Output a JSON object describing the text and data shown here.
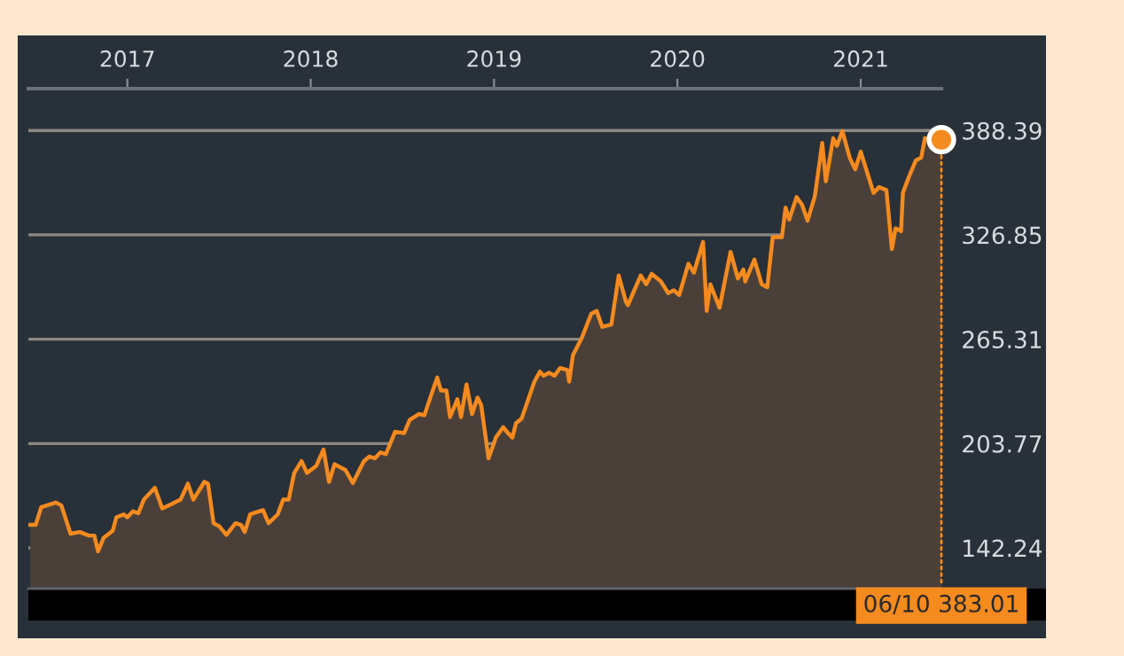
{
  "chart_data": {
    "type": "area",
    "xlim": [
      2016.46,
      2021.44
    ],
    "ylim": [
      118.2,
      413.1
    ],
    "xticks": [
      2017,
      2018,
      2019,
      2020,
      2021
    ],
    "yticks": [
      {
        "value": 142.24,
        "label": "142.24"
      },
      {
        "value": 203.77,
        "label": "203.77"
      },
      {
        "value": 265.31,
        "label": "265.31"
      },
      {
        "value": 326.85,
        "label": "326.85"
      },
      {
        "value": 388.39,
        "label": "388.39"
      }
    ],
    "grid": "y",
    "legend": false,
    "annotations": [
      {
        "text": "06/10 383.01",
        "x": 2021.44,
        "y": 383.01
      }
    ],
    "series": [
      {
        "color": "#f58a1f",
        "x": [
          2016.47,
          2016.5,
          2016.53,
          2016.61,
          2016.64,
          2016.69,
          2016.74,
          2016.79,
          2016.82,
          2016.84,
          2016.87,
          2016.92,
          2016.94,
          2016.98,
          2017.0,
          2017.03,
          2017.06,
          2017.09,
          2017.15,
          2017.19,
          2017.24,
          2017.29,
          2017.33,
          2017.36,
          2017.42,
          2017.44,
          2017.47,
          2017.5,
          2017.54,
          2017.59,
          2017.62,
          2017.64,
          2017.67,
          2017.74,
          2017.77,
          2017.82,
          2017.85,
          2017.88,
          2017.91,
          2017.95,
          2017.98,
          2018.03,
          2018.07,
          2018.1,
          2018.13,
          2018.19,
          2018.23,
          2018.29,
          2018.32,
          2018.35,
          2018.38,
          2018.41,
          2018.46,
          2018.51,
          2018.54,
          2018.59,
          2018.62,
          2018.66,
          2018.69,
          2018.71,
          2018.74,
          2018.76,
          2018.8,
          2018.82,
          2018.85,
          2018.88,
          2018.91,
          2018.93,
          2018.97,
          2019.01,
          2019.05,
          2019.07,
          2019.1,
          2019.12,
          2019.15,
          2019.19,
          2019.22,
          2019.25,
          2019.27,
          2019.3,
          2019.33,
          2019.36,
          2019.4,
          2019.41,
          2019.43,
          2019.48,
          2019.53,
          2019.56,
          2019.59,
          2019.64,
          2019.68,
          2019.72,
          2019.73,
          2019.8,
          2019.83,
          2019.86,
          2019.91,
          2019.95,
          2019.98,
          2020.01,
          2020.06,
          2020.09,
          2020.14,
          2020.16,
          2020.18,
          2020.23,
          2020.29,
          2020.33,
          2020.36,
          2020.37,
          2020.42,
          2020.46,
          2020.49,
          2020.52,
          2020.57,
          2020.59,
          2020.61,
          2020.65,
          2020.68,
          2020.71,
          2020.75,
          2020.79,
          2020.81,
          2020.85,
          2020.87,
          2020.9,
          2020.94,
          2020.97,
          2021.0,
          2021.04,
          2021.07,
          2021.1,
          2021.14,
          2021.17,
          2021.19,
          2021.22,
          2021.23,
          2021.26,
          2021.3,
          2021.33,
          2021.35,
          2021.39,
          2021.44
        ],
        "values": [
          155.8,
          155.8,
          166.2,
          169.0,
          167.3,
          150.6,
          151.6,
          149.5,
          149.5,
          140.2,
          148.1,
          152.3,
          160.3,
          162.0,
          160.3,
          163.8,
          162.7,
          170.7,
          177.7,
          165.5,
          168.0,
          170.7,
          180.1,
          170.7,
          181.2,
          180.1,
          156.8,
          155.1,
          149.9,
          156.8,
          155.8,
          151.6,
          162.0,
          164.5,
          156.8,
          162.0,
          170.7,
          170.7,
          186.4,
          193.4,
          186.4,
          190.6,
          200.3,
          181.2,
          191.6,
          188.1,
          180.5,
          193.4,
          196.1,
          195.1,
          198.6,
          197.5,
          210.7,
          210.0,
          217.7,
          221.2,
          220.5,
          233.3,
          242.7,
          235.1,
          235.1,
          219.4,
          229.9,
          219.4,
          238.6,
          221.2,
          230.9,
          226.4,
          195.1,
          207.3,
          213.5,
          210.7,
          207.3,
          215.9,
          218.4,
          230.9,
          240.3,
          246.2,
          243.8,
          245.5,
          243.8,
          248.3,
          247.2,
          240.3,
          255.9,
          266.4,
          280.3,
          282.0,
          272.6,
          274.0,
          302.9,
          287.2,
          285.5,
          302.9,
          297.7,
          303.9,
          299.4,
          292.5,
          294.2,
          291.4,
          309.8,
          304.6,
          322.7,
          282.0,
          297.7,
          283.8,
          316.8,
          301.1,
          306.4,
          299.4,
          312.3,
          297.7,
          295.9,
          325.5,
          325.5,
          342.9,
          335.9,
          349.1,
          344.6,
          335.2,
          349.8,
          381.1,
          358.5,
          383.9,
          379.4,
          388.1,
          372.4,
          365.5,
          375.9,
          362.0,
          351.6,
          355.0,
          353.3,
          318.5,
          330.7,
          329.0,
          351.6,
          360.3,
          370.7,
          372.4,
          383.9,
          383.0,
          383.01
        ]
      }
    ]
  }
}
